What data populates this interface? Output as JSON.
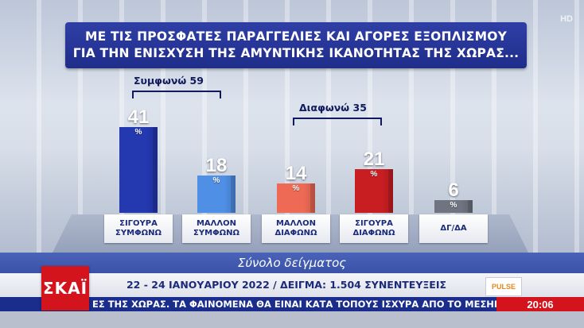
{
  "title_lines": [
    "ΜΕ ΤΙΣ ΠΡΟΣΦΑΤΕΣ ΠΑΡΑΓΓΕΛΙΕΣ ΚΑΙ ΑΓΟΡΕΣ ΕΞΟΠΛΙΣΜΟΥ",
    "ΓΙΑ ΤΗΝ ΕΝΙΣΧΥΣΗ ΤΗΣ ΑΜΥΝΤΙΚΗΣ ΙΚΑΝΟΤΗΤΑΣ ΤΗΣ ΧΩΡΑΣ..."
  ],
  "channel_badge": "HD",
  "groups": {
    "agree": "Συμφωνώ 59",
    "disagree": "Διαφωνώ 35"
  },
  "percent_sign": "%",
  "chart_data": {
    "type": "bar",
    "title": "ΜΕ ΤΙΣ ΠΡΟΣΦΑΤΕΣ ΠΑΡΑΓΓΕΛΙΕΣ ΚΑΙ ΑΓΟΡΕΣ ΕΞΟΠΛΙΣΜΟΥ ΓΙΑ ΤΗΝ ΕΝΙΣΧΥΣΗ ΤΗΣ ΑΜΥΝΤΙΚΗΣ ΙΚΑΝΟΤΗΤΑΣ ΤΗΣ ΧΩΡΑΣ...",
    "categories": [
      [
        "ΣΙΓΟΥΡΑ",
        "ΣΥΜΦΩΝΩ"
      ],
      [
        "ΜΑΛΛΟΝ",
        "ΣΥΜΦΩΝΩ"
      ],
      [
        "ΜΑΛΛΟΝ",
        "ΔΙΑΦΩΝΩ"
      ],
      [
        "ΣΙΓΟΥΡΑ",
        "ΔΙΑΦΩΝΩ"
      ],
      [
        "ΔΓ/ΔΑ"
      ]
    ],
    "values": [
      41,
      18,
      14,
      21,
      6
    ],
    "value_labels": [
      "41",
      "18",
      "14",
      "21",
      "6"
    ],
    "unit": "%",
    "colors": [
      "#2438b0",
      "#4f8fe6",
      "#ee6a55",
      "#c81e22",
      "#6f7480"
    ],
    "ylim": [
      0,
      45
    ],
    "grid": false,
    "legend": "none"
  },
  "sample_label": "Σύνολο δείγματος",
  "info_line": "22 - 24 ΙΑΝΟΥΑΡΙΟΥ 2022 / ΔΕΙΓΜΑ: 1.504 ΣΥΝΕΝΤΕΥΞΕΙΣ",
  "pollster_logo": "PULSE",
  "channel_logo": "ΣΚΑΪ",
  "ticker_text": "ΕΣ ΤΗΣ ΧΩΡΑΣ.    ΤΑ ΦΑΙΝΟΜΕΝΑ ΘΑ ΕΙΝΑΙ ΚΑΤΑ ΤΟΠΟΥΣ ΙΣΧΥΡΑ ΑΠΟ ΤΟ ΜΕΣΗΜΕΡΙ ΣΤΑ ΝΗΣΙΑ",
  "clock": "20:06"
}
